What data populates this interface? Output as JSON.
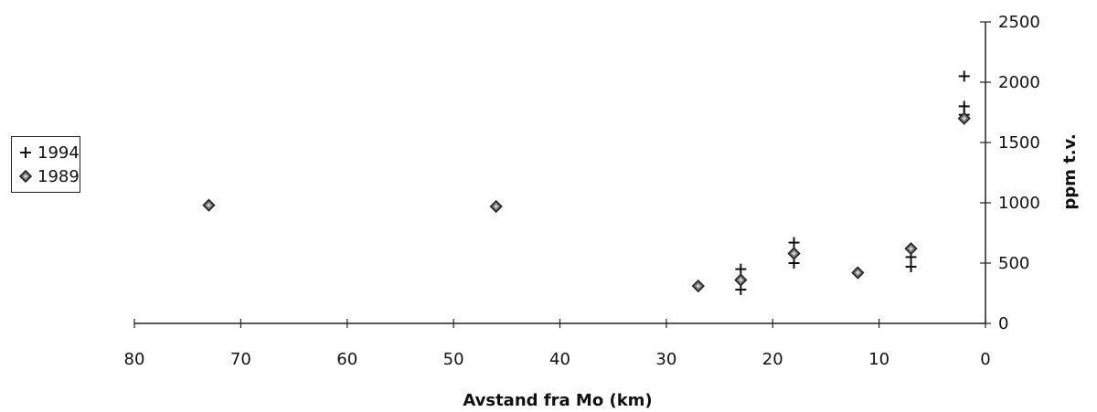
{
  "chart_data": {
    "type": "scatter",
    "title": "",
    "xlabel": "Avstand fra Mo (km)",
    "ylabel": "ppm t.v.",
    "xlim": [
      80,
      0
    ],
    "x_reversed": true,
    "ylim": [
      0,
      2500
    ],
    "x_ticks": [
      80,
      70,
      60,
      50,
      40,
      30,
      20,
      10,
      0
    ],
    "y_ticks": [
      0,
      500,
      1000,
      1500,
      2000,
      2500
    ],
    "y_axis_position": "right",
    "grid": false,
    "legend_position": "left",
    "series": [
      {
        "name": "1994",
        "marker": "plus",
        "color": "#111111",
        "points": [
          {
            "x": 2,
            "y": 2050
          },
          {
            "x": 2,
            "y": 1800
          },
          {
            "x": 2,
            "y": 1730
          },
          {
            "x": 23,
            "y": 450
          },
          {
            "x": 23,
            "y": 280
          },
          {
            "x": 18,
            "y": 670
          },
          {
            "x": 18,
            "y": 500
          },
          {
            "x": 7,
            "y": 550
          },
          {
            "x": 7,
            "y": 470
          }
        ]
      },
      {
        "name": "1989",
        "marker": "diamond",
        "color": "#333333",
        "points": [
          {
            "x": 73,
            "y": 980
          },
          {
            "x": 46,
            "y": 970
          },
          {
            "x": 27,
            "y": 310
          },
          {
            "x": 23,
            "y": 360
          },
          {
            "x": 18,
            "y": 580
          },
          {
            "x": 12,
            "y": 420
          },
          {
            "x": 7,
            "y": 620
          },
          {
            "x": 2,
            "y": 1700
          }
        ]
      }
    ]
  }
}
